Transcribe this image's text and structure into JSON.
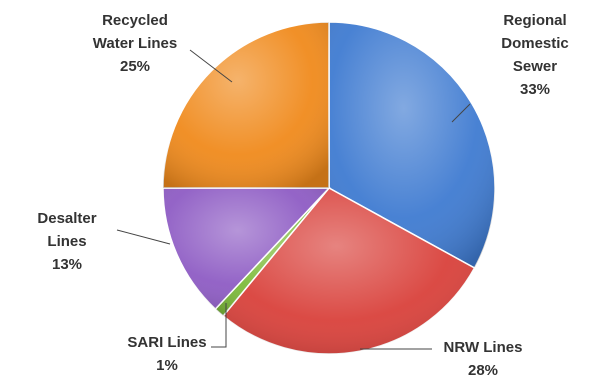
{
  "chart_data": {
    "type": "pie",
    "title": "",
    "slices": [
      {
        "name": "Regional Domestic Sewer",
        "lines": [
          "Regional",
          "Domestic",
          "Sewer"
        ],
        "percent_label": "33%",
        "value": 33,
        "color": "#3f7bd1"
      },
      {
        "name": "NRW Lines",
        "lines": [
          "NRW Lines"
        ],
        "percent_label": "28%",
        "value": 28,
        "color": "#d9413b"
      },
      {
        "name": "SARI Lines",
        "lines": [
          "SARI Lines"
        ],
        "percent_label": "1%",
        "value": 1,
        "color": "#7dbb3a"
      },
      {
        "name": "Desalter Lines",
        "lines": [
          "Desalter",
          "Lines"
        ],
        "percent_label": "13%",
        "value": 13,
        "color": "#8e5cc4"
      },
      {
        "name": "Recycled Water Lines",
        "lines": [
          "Recycled",
          "Water Lines"
        ],
        "percent_label": "25%",
        "value": 25,
        "color": "#f08a1c"
      }
    ],
    "start_angle_deg": 0,
    "direction": "clockwise",
    "legend": "none"
  }
}
